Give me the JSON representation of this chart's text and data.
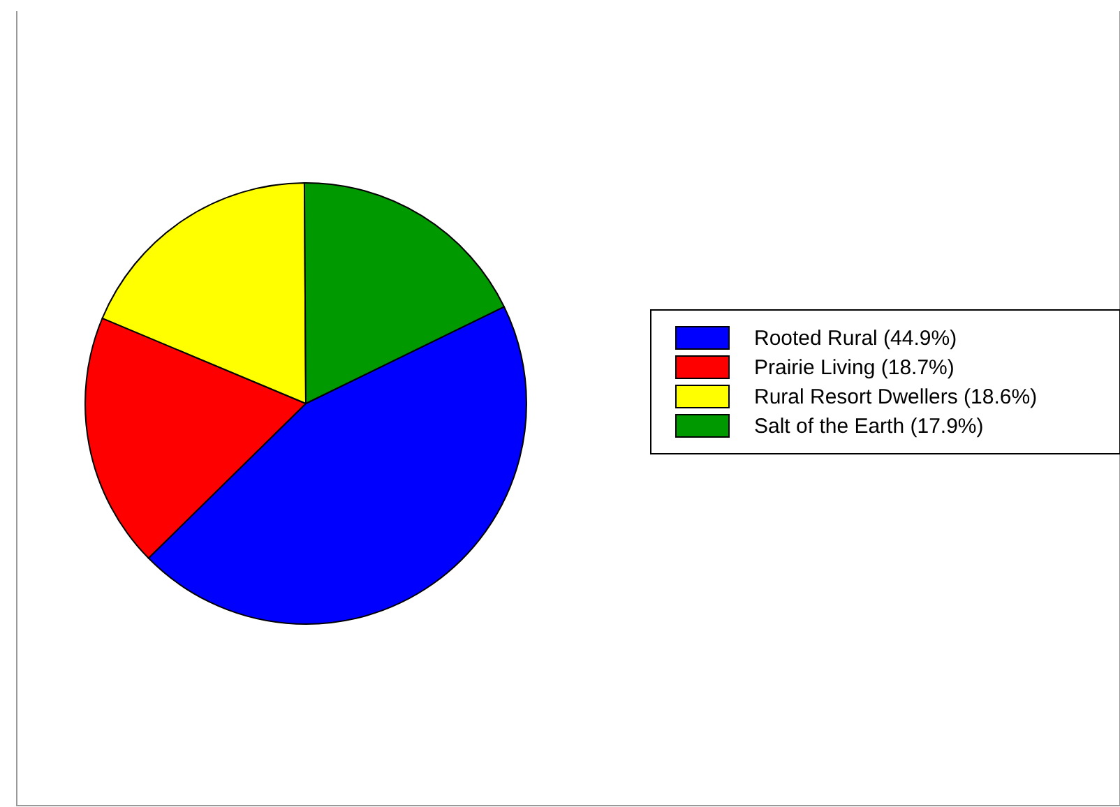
{
  "chart_data": {
    "type": "pie",
    "categories": [
      "Rooted Rural (44.9%)",
      "Prairie Living (18.7%)",
      "Rural Resort Dwellers (18.6%)",
      "Salt of the Earth (17.9%)"
    ],
    "values": [
      44.9,
      18.7,
      18.6,
      17.9
    ],
    "colors": [
      "#0000ff",
      "#ff0000",
      "#ffff00",
      "#009900"
    ],
    "legend": "right"
  }
}
